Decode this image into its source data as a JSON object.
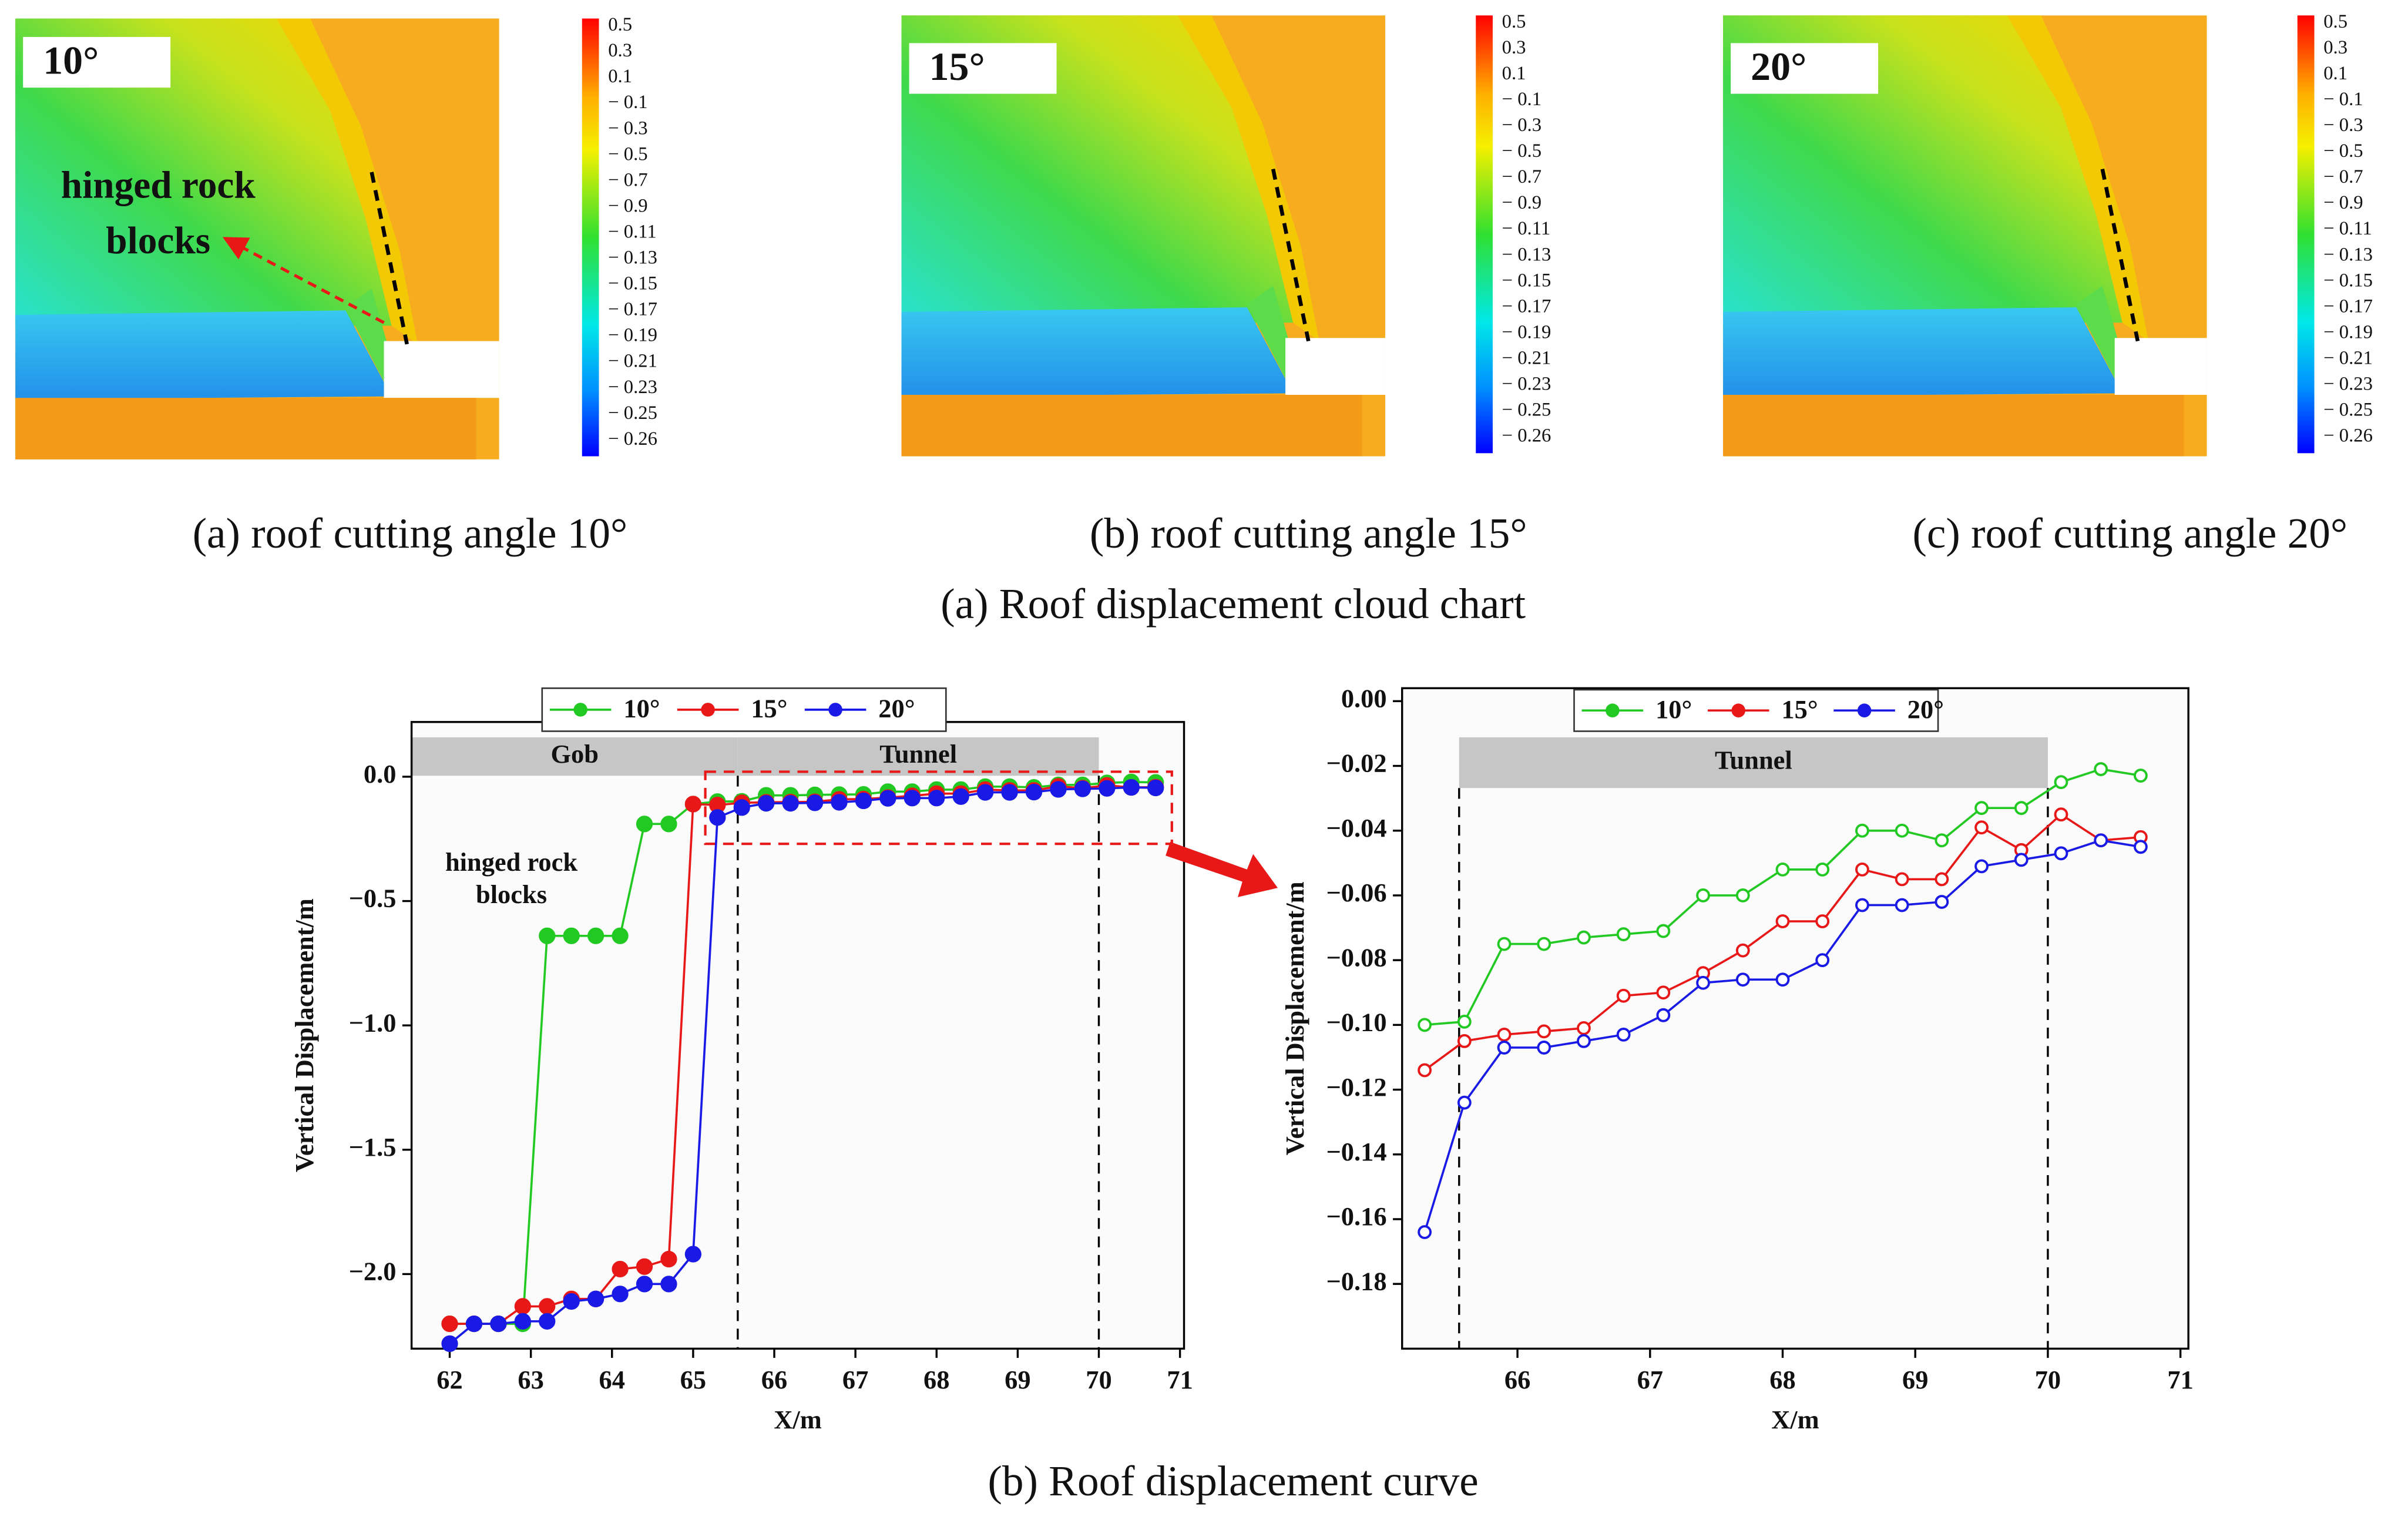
{
  "cloud_panels": [
    {
      "label": "10°",
      "caption": "(a) roof cutting angle 10°",
      "annotation": [
        "hinged rock",
        "blocks"
      ]
    },
    {
      "label": "15°",
      "caption": "(b) roof cutting angle 15°"
    },
    {
      "label": "20°",
      "caption": "(c) roof cutting angle 20°"
    }
  ],
  "colorbar_labels": [
    "0.5",
    "0.3",
    "0.1",
    "− 0.1",
    "− 0.3",
    "− 0.5",
    "− 0.7",
    "− 0.9",
    "− 0.11",
    "− 0.13",
    "− 0.15",
    "− 0.17",
    "− 0.19",
    "− 0.21",
    "− 0.23",
    "− 0.25",
    "− 0.26"
  ],
  "caption_top": "(a) Roof displacement cloud chart",
  "caption_bottom": "(b) Roof displacement curve",
  "chart_data": [
    {
      "type": "line",
      "xlabel": "X/m",
      "ylabel": "Vertical Displacement/m",
      "x": [
        62.0,
        62.3,
        62.6,
        62.9,
        63.2,
        63.5,
        63.8,
        64.1,
        64.4,
        64.7,
        65.0,
        65.3,
        65.6,
        65.9,
        66.2,
        66.5,
        66.8,
        67.1,
        67.4,
        67.7,
        68.0,
        68.3,
        68.6,
        68.9,
        69.2,
        69.5,
        69.8,
        70.1,
        70.4,
        70.7
      ],
      "series": [
        {
          "name": "10°",
          "color": "#22c922",
          "values": [
            -2.2,
            -2.2,
            -2.2,
            -2.2,
            -0.64,
            -0.64,
            -0.64,
            -0.64,
            -0.19,
            -0.19,
            -0.11,
            -0.1,
            -0.099,
            -0.075,
            -0.075,
            -0.073,
            -0.072,
            -0.071,
            -0.06,
            -0.06,
            -0.052,
            -0.052,
            -0.04,
            -0.04,
            -0.043,
            -0.033,
            -0.033,
            -0.025,
            -0.021,
            -0.023
          ]
        },
        {
          "name": "15°",
          "color": "#e81818",
          "values": [
            -2.2,
            -2.2,
            -2.2,
            -2.13,
            -2.13,
            -2.1,
            -2.1,
            -1.98,
            -1.97,
            -1.94,
            -0.11,
            -0.114,
            -0.105,
            -0.103,
            -0.102,
            -0.101,
            -0.091,
            -0.09,
            -0.084,
            -0.077,
            -0.068,
            -0.068,
            -0.052,
            -0.055,
            -0.055,
            -0.039,
            -0.046,
            -0.035,
            -0.043,
            -0.042
          ]
        },
        {
          "name": "20°",
          "color": "#1a1ae6",
          "values": [
            -2.28,
            -2.2,
            -2.2,
            -2.19,
            -2.19,
            -2.11,
            -2.1,
            -2.08,
            -2.04,
            -2.04,
            -1.92,
            -0.164,
            -0.124,
            -0.107,
            -0.107,
            -0.105,
            -0.103,
            -0.097,
            -0.087,
            -0.086,
            -0.086,
            -0.08,
            -0.063,
            -0.063,
            -0.062,
            -0.051,
            -0.049,
            -0.047,
            -0.043,
            -0.045
          ]
        }
      ],
      "xlim": [
        61.53,
        71.05
      ],
      "ylim": [
        -2.3,
        0.22
      ],
      "xticks": [
        62,
        63,
        64,
        65,
        66,
        67,
        68,
        69,
        70,
        71
      ],
      "yticks": [
        {
          "value": 0,
          "label": "0.0"
        },
        {
          "value": -0.5,
          "label": "−0.5"
        },
        {
          "value": -1.0,
          "label": "−1.0"
        },
        {
          "value": -1.5,
          "label": "−1.5"
        },
        {
          "value": -2.0,
          "label": "−2.0"
        }
      ],
      "regions": [
        {
          "label": "Gob",
          "x": [
            61.53,
            65.55
          ]
        },
        {
          "label": "Tunnel",
          "x": [
            65.55,
            70.0
          ]
        }
      ],
      "dashed_lines": [
        65.55,
        70.0
      ],
      "zoom_box": {
        "x": [
          65.15,
          70.9
        ],
        "y": [
          -0.27,
          0.02
        ]
      },
      "annotation": [
        "hinged rock",
        "blocks"
      ],
      "legend": "top"
    },
    {
      "type": "line",
      "xlabel": "X/m",
      "ylabel": "Vertical Displacement/m",
      "x": [
        65.3,
        65.6,
        65.9,
        66.2,
        66.5,
        66.8,
        67.1,
        67.4,
        67.7,
        68.0,
        68.3,
        68.6,
        68.9,
        69.2,
        69.5,
        69.8,
        70.1,
        70.4,
        70.7
      ],
      "series": [
        {
          "name": "10°",
          "color": "#22c922",
          "values": [
            -0.1,
            -0.099,
            -0.075,
            -0.075,
            -0.073,
            -0.072,
            -0.071,
            -0.06,
            -0.06,
            -0.052,
            -0.052,
            -0.04,
            -0.04,
            -0.043,
            -0.033,
            -0.033,
            -0.025,
            -0.021,
            -0.023
          ]
        },
        {
          "name": "15°",
          "color": "#e81818",
          "values": [
            -0.114,
            -0.105,
            -0.103,
            -0.102,
            -0.101,
            -0.091,
            -0.09,
            -0.084,
            -0.077,
            -0.068,
            -0.068,
            -0.052,
            -0.055,
            -0.055,
            -0.039,
            -0.046,
            -0.035,
            -0.043,
            -0.042
          ]
        },
        {
          "name": "20°",
          "color": "#1a1ae6",
          "values": [
            -0.164,
            -0.124,
            -0.107,
            -0.107,
            -0.105,
            -0.103,
            -0.097,
            -0.087,
            -0.086,
            -0.086,
            -0.08,
            -0.063,
            -0.063,
            -0.062,
            -0.051,
            -0.049,
            -0.047,
            -0.043,
            -0.045
          ]
        }
      ],
      "xlim": [
        65.13,
        71.06
      ],
      "ylim": [
        -0.2,
        0.004
      ],
      "xticks": [
        66,
        67,
        68,
        69,
        70,
        71
      ],
      "yticks": [
        {
          "value": 0,
          "label": "0.00"
        },
        {
          "value": -0.02,
          "label": "−0.02"
        },
        {
          "value": -0.04,
          "label": "−0.04"
        },
        {
          "value": -0.06,
          "label": "−0.06"
        },
        {
          "value": -0.08,
          "label": "−0.08"
        },
        {
          "value": -0.1,
          "label": "−0.10"
        },
        {
          "value": -0.12,
          "label": "−0.12"
        },
        {
          "value": -0.14,
          "label": "−0.14"
        },
        {
          "value": -0.16,
          "label": "−0.16"
        },
        {
          "value": -0.18,
          "label": "−0.18"
        }
      ],
      "regions": [
        {
          "label": "Tunnel",
          "x": [
            65.56,
            70.0
          ]
        }
      ],
      "dashed_lines": [
        65.56,
        70.0
      ],
      "legend": "top"
    }
  ]
}
